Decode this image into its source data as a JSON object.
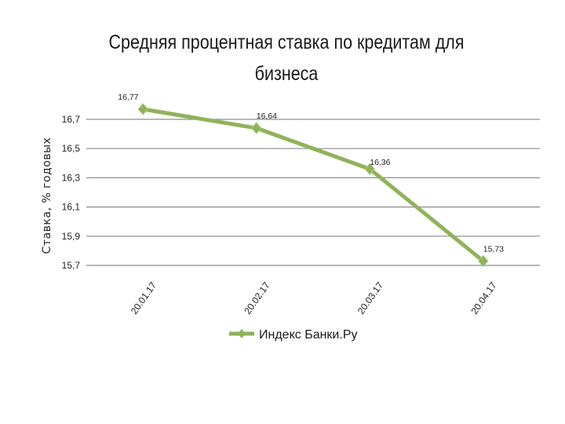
{
  "chart_data": {
    "type": "line",
    "title": "Средняя процентная ставка по кредитам для\nбизнеса",
    "xlabel": "",
    "ylabel": "Ставка, % годовых",
    "categories": [
      "20.01.17",
      "20.02.17",
      "20.03.17",
      "20.04.17"
    ],
    "series": [
      {
        "name": "Индекс Банки.Ру",
        "values": [
          16.77,
          16.64,
          16.36,
          15.73
        ],
        "labels": [
          "16,77",
          "16,64",
          "16,36",
          "15,73"
        ],
        "color": "#8fb35a"
      }
    ],
    "ylim": [
      15.7,
      16.7
    ],
    "yticks": [
      15.7,
      15.9,
      16.1,
      16.3,
      16.5,
      16.7
    ],
    "ytick_labels": [
      "15,7",
      "15,9",
      "16,1",
      "16,3",
      "16,5",
      "16,7"
    ],
    "grid": true,
    "legend_position": "bottom"
  }
}
